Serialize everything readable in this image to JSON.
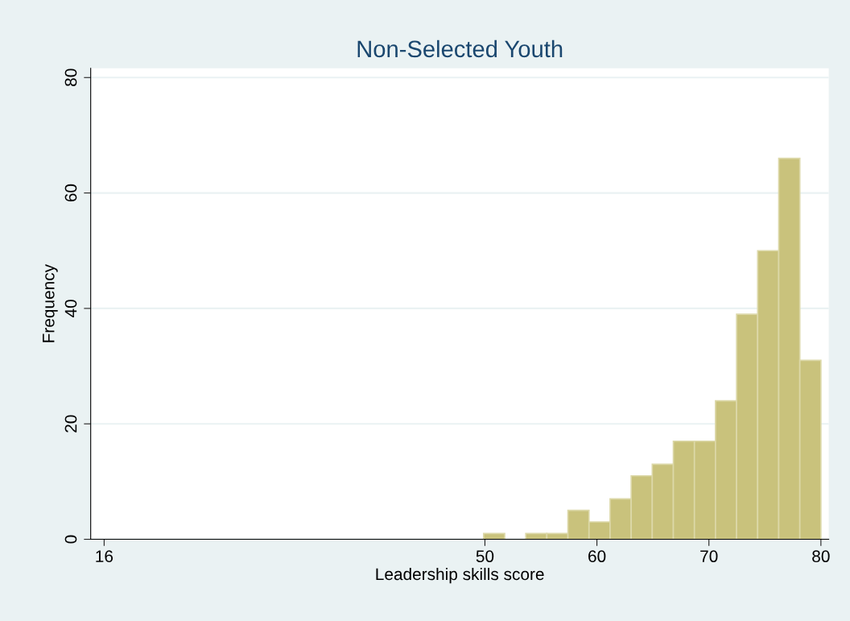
{
  "chart_data": {
    "type": "histogram",
    "title": "Non-Selected Youth",
    "xlabel": "Leadership skills score",
    "ylabel": "Frequency",
    "bins": [
      49.882,
      51.765,
      53.647,
      55.529,
      57.412,
      59.294,
      61.176,
      63.059,
      64.941,
      66.824,
      68.706,
      70.588,
      72.471,
      74.353,
      76.235,
      78.118,
      80
    ],
    "values": [
      1,
      0,
      1,
      1,
      5,
      3,
      7,
      11,
      13,
      17,
      17,
      24,
      39,
      50,
      66,
      31
    ],
    "color": "#c9c27c",
    "xlim": [
      14.8,
      80.7
    ],
    "xticks": [
      16,
      50,
      60,
      70,
      80
    ],
    "ylim": [
      0,
      81.6
    ],
    "yticks": [
      0,
      20,
      40,
      60,
      80
    ],
    "grid": "y"
  }
}
